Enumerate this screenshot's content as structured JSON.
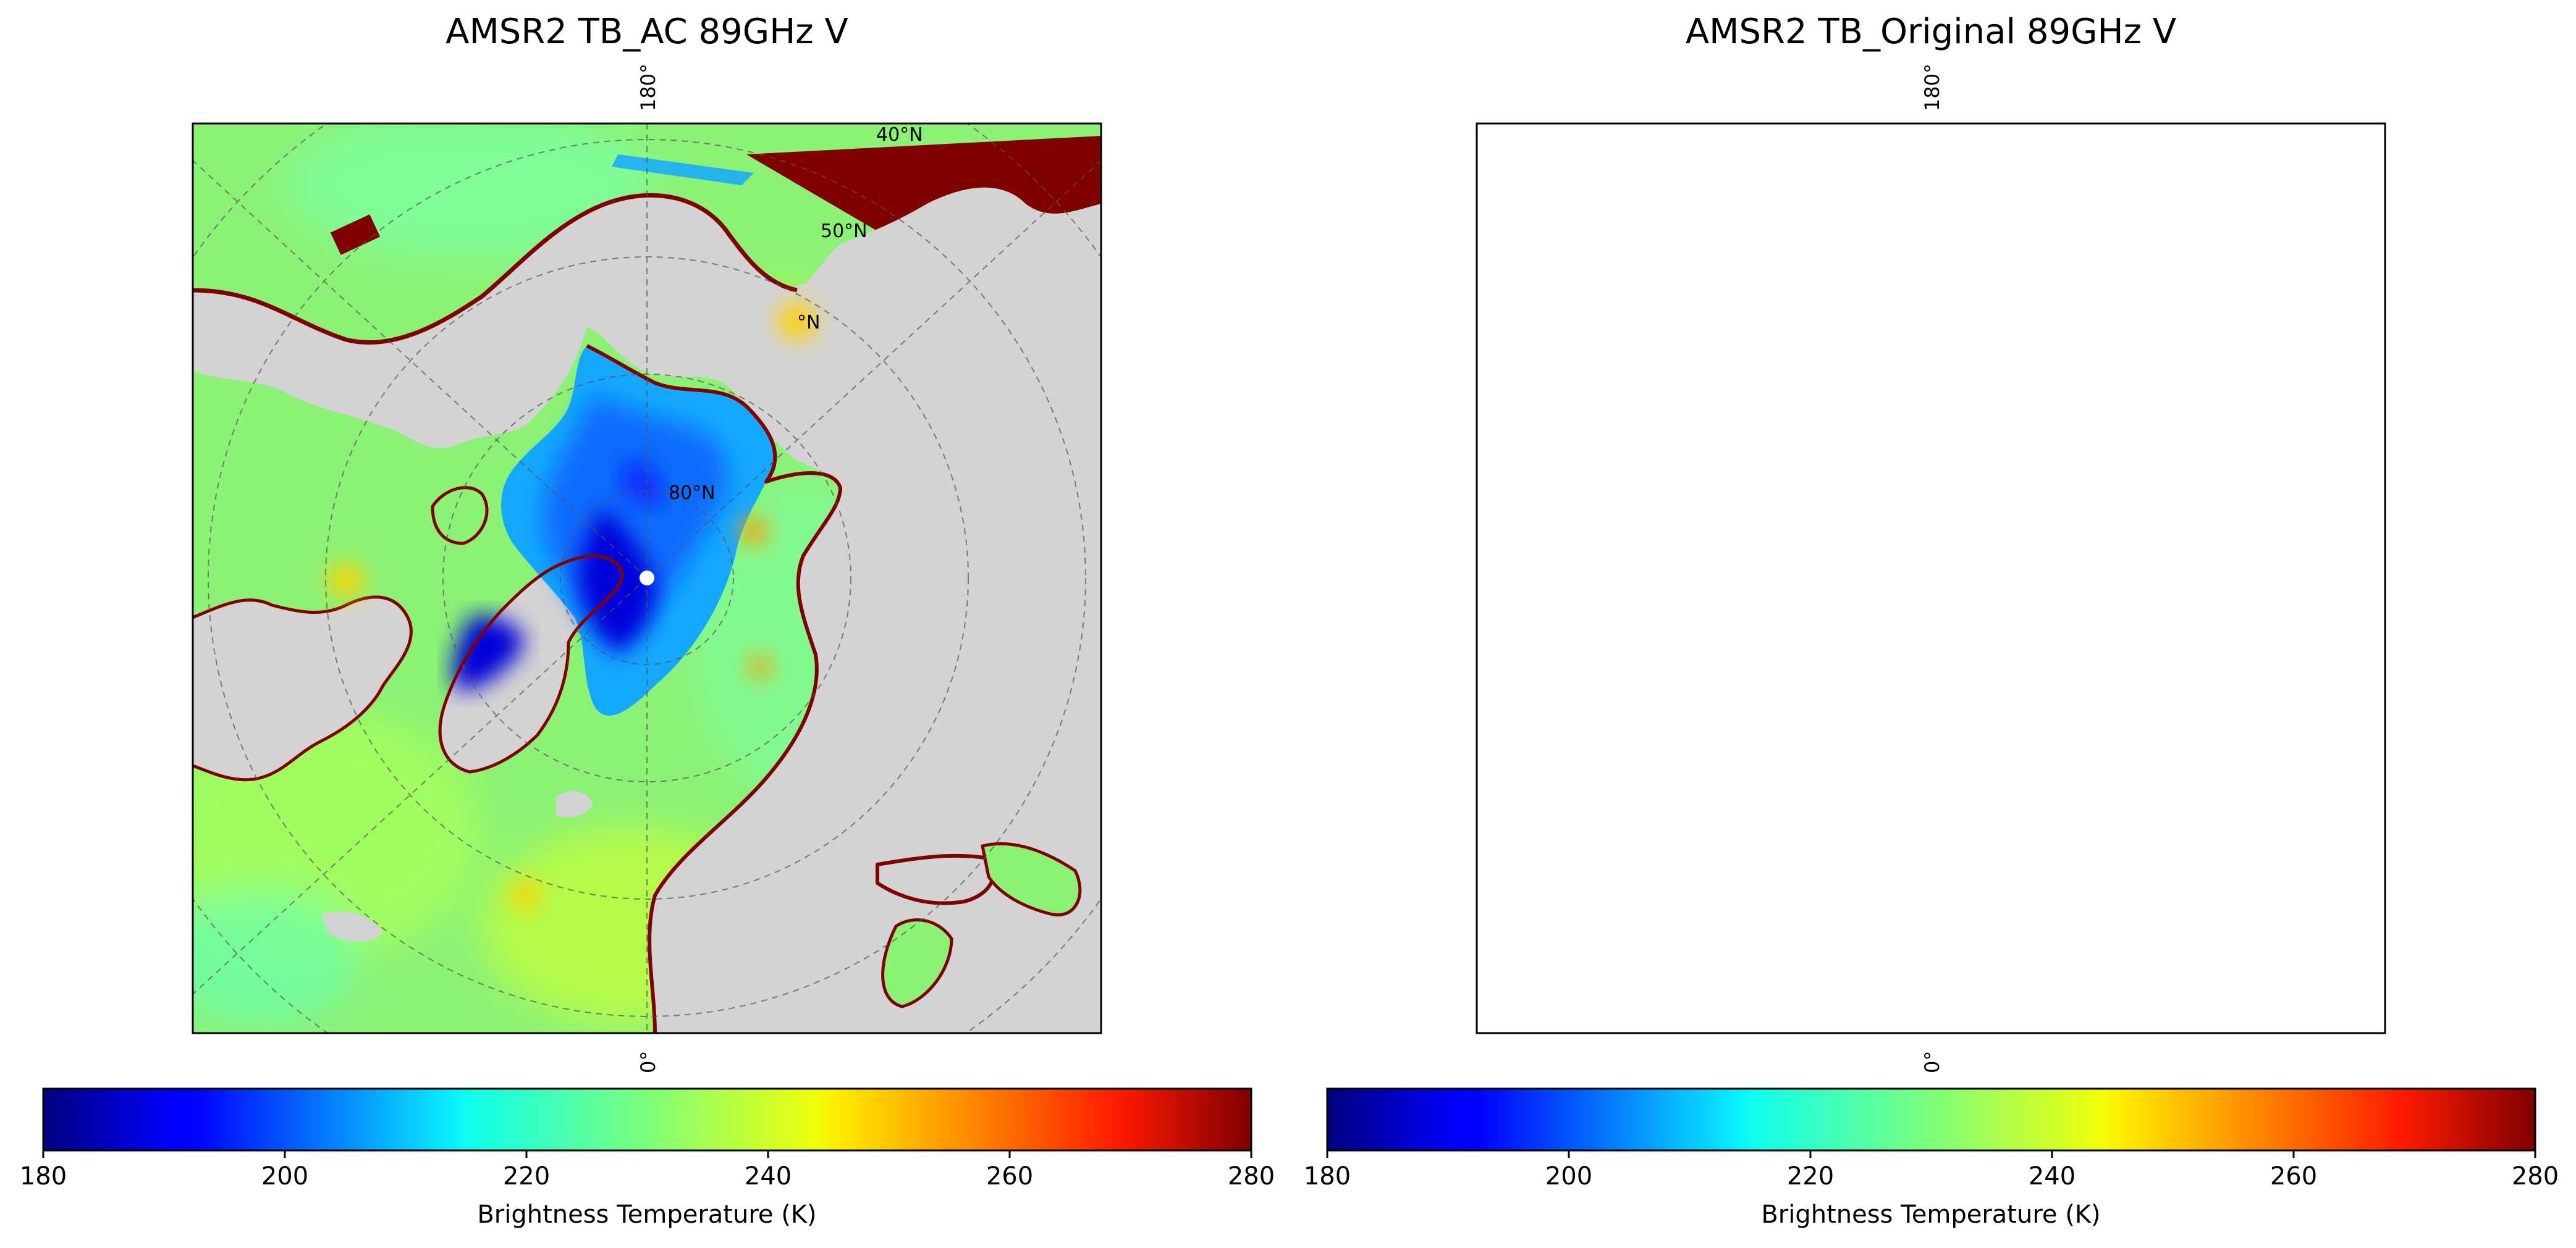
{
  "panels": [
    {
      "id": "ac",
      "title": "AMSR2 TB_AC 89GHz V",
      "palette": {
        "ocean": [
          "#8cf276",
          "#a6ff5a",
          "#7dffa0",
          "#c8ff37",
          "#6bffae"
        ],
        "coast": "#800000",
        "arctic": [
          "#0000d8",
          "#0a2aff",
          "#0c6cff",
          "#14a8ff"
        ],
        "warm_patches": [
          "#ffd200",
          "#ff9a00"
        ]
      },
      "colorbar": {
        "label": "Brightness Temperature (K)",
        "ticks": [
          "180",
          "200",
          "220",
          "240",
          "260",
          "280"
        ],
        "vmin": 180,
        "vmax": 280
      }
    },
    {
      "id": "original",
      "title": "AMSR2 TB_Original 89GHz V",
      "palette": {
        "ocean": [
          "#ffc400",
          "#ff9600",
          "#ff7300",
          "#ffd900",
          "#ffec00"
        ],
        "coast": "#a01a00",
        "arctic": [
          "#0000d8",
          "#0a2aff",
          "#0c6cff",
          "#14a8ff"
        ],
        "warm_patches": [
          "#ff3c00",
          "#e21700"
        ]
      },
      "colorbar": {
        "label": "Brightness Temperature (K)",
        "ticks": [
          "180",
          "200",
          "220",
          "240",
          "260",
          "280"
        ],
        "vmin": 180,
        "vmax": 280
      }
    }
  ],
  "gridline_labels": {
    "top_meridian": "180°",
    "bottom_meridian": "0°",
    "lat_40": "40°N",
    "lat_50": "50°N",
    "lat_60_partial": "°N",
    "lat_80": "80°N"
  },
  "colormap": "jet",
  "land_color": "#d3d3d3"
}
